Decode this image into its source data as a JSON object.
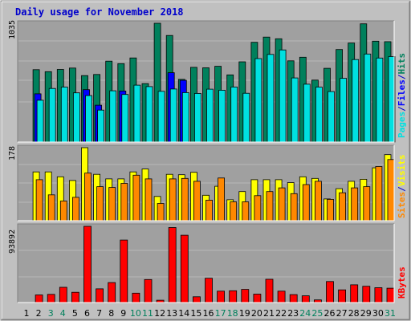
{
  "title": "Daily usage for November 2018",
  "chart_data": [
    {
      "type": "bar",
      "panel": "hits-files-pages",
      "max_label": "1035",
      "ylim": [
        0,
        1035
      ],
      "categories": [
        "1",
        "2",
        "3",
        "4",
        "5",
        "6",
        "7",
        "8",
        "9",
        "10",
        "11",
        "12",
        "13",
        "14",
        "15",
        "16",
        "17",
        "18",
        "19",
        "20",
        "21",
        "22",
        "23",
        "24",
        "25",
        "26",
        "27",
        "28",
        "29",
        "30",
        "31"
      ],
      "weekend_days": [
        "3",
        "4",
        "10",
        "11",
        "17",
        "18",
        "24",
        "25",
        "31"
      ],
      "legend": [
        {
          "label": "Hits",
          "color": "#00805c"
        },
        {
          "label": "/",
          "color": "#0000cc"
        },
        {
          "label": "Files",
          "color": "#0000ff"
        },
        {
          "label": "/",
          "color": "#0000cc"
        },
        {
          "label": "Pages",
          "color": "#00e0e0"
        }
      ],
      "series": [
        {
          "name": "Hits",
          "color": "#00805c",
          "values": [
            0,
            631,
            613,
            633,
            645,
            579,
            589,
            705,
            683,
            733,
            509,
            1035,
            929,
            546,
            651,
            647,
            660,
            585,
            699,
            869,
            915,
            900,
            708,
            739,
            540,
            643,
            806,
            863,
            1030,
            879,
            875
          ]
        },
        {
          "name": "Files",
          "color": "#0000ff",
          "values": [
            0,
            420,
            0,
            0,
            0,
            457,
            321,
            0,
            445,
            0,
            0,
            0,
            604,
            538,
            0,
            0,
            0,
            0,
            0,
            0,
            0,
            0,
            0,
            0,
            0,
            0,
            0,
            0,
            0,
            0,
            0
          ]
        },
        {
          "name": "Pages",
          "color": "#00e0e0",
          "values": [
            0,
            364,
            467,
            479,
            429,
            405,
            278,
            447,
            415,
            496,
            483,
            442,
            462,
            431,
            424,
            461,
            452,
            480,
            425,
            727,
            764,
            803,
            559,
            504,
            479,
            440,
            555,
            719,
            767,
            732,
            745
          ]
        }
      ]
    },
    {
      "type": "bar",
      "panel": "visits-sites",
      "max_label": "178",
      "ylim": [
        0,
        178
      ],
      "categories": [
        "1",
        "2",
        "3",
        "4",
        "5",
        "6",
        "7",
        "8",
        "9",
        "10",
        "11",
        "12",
        "13",
        "14",
        "15",
        "16",
        "17",
        "18",
        "19",
        "20",
        "21",
        "22",
        "23",
        "24",
        "25",
        "26",
        "27",
        "28",
        "29",
        "30",
        "31"
      ],
      "legend": [
        {
          "label": "Visits",
          "color": "#ffff00"
        },
        {
          "label": "/",
          "color": "#0000cc"
        },
        {
          "label": "Sites",
          "color": "#ff8800"
        }
      ],
      "series": [
        {
          "name": "Visits",
          "color": "#ffff00",
          "values": [
            0,
            119,
            119,
            107,
            98,
            178,
            113,
            102,
            102,
            119,
            126,
            59,
            113,
            112,
            118,
            62,
            84,
            51,
            71,
            100,
            100,
            100,
            93,
            107,
            103,
            53,
            78,
            96,
            101,
            129,
            161
          ]
        },
        {
          "name": "Sites",
          "color": "#ff8800",
          "values": [
            0,
            100,
            63,
            48,
            57,
            116,
            83,
            81,
            91,
            111,
            102,
            42,
            102,
            103,
            96,
            50,
            104,
            46,
            46,
            61,
            71,
            80,
            66,
            88,
            96,
            52,
            68,
            80,
            83,
            132,
            149
          ]
        }
      ]
    },
    {
      "type": "bar",
      "panel": "kbytes",
      "max_label": "93892",
      "ylim": [
        0,
        93892
      ],
      "categories": [
        "1",
        "2",
        "3",
        "4",
        "5",
        "6",
        "7",
        "8",
        "9",
        "10",
        "11",
        "12",
        "13",
        "14",
        "15",
        "16",
        "17",
        "18",
        "19",
        "20",
        "21",
        "22",
        "23",
        "24",
        "25",
        "26",
        "27",
        "28",
        "29",
        "30",
        "31"
      ],
      "legend": [
        {
          "label": "KBytes",
          "color": "#ff0000"
        }
      ],
      "series": [
        {
          "name": "KBytes",
          "color": "#ff0000",
          "values": [
            0,
            9400,
            10100,
            18800,
            12700,
            93892,
            16900,
            24600,
            77000,
            11600,
            28400,
            2900,
            92400,
            82900,
            7100,
            29900,
            14000,
            14500,
            16200,
            10400,
            28700,
            14000,
            9800,
            8300,
            3300,
            25900,
            15600,
            21800,
            20100,
            18300,
            17700
          ]
        }
      ]
    }
  ]
}
